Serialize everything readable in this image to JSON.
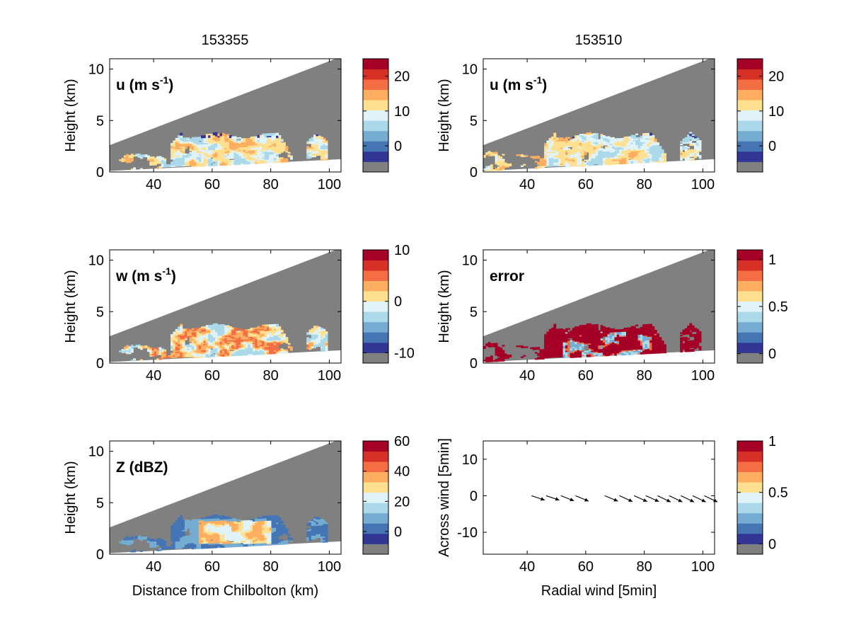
{
  "column_titles": [
    "153355",
    "153510"
  ],
  "colors": {
    "nodata": "#808080",
    "colormap": [
      "#313695",
      "#4575b4",
      "#74add1",
      "#abd9e9",
      "#e0f3f8",
      "#fee090",
      "#fdae61",
      "#f46d43",
      "#d73027",
      "#a50026"
    ]
  },
  "chart_data": [
    {
      "type": "heatmap",
      "id": "u-153355",
      "column": 0,
      "label": "u (m s",
      "label_sup": "-1",
      "label_end": ")",
      "xlabel": "",
      "ylabel": "Height (km)",
      "xlim": [
        25,
        104
      ],
      "ylim": [
        0,
        11
      ],
      "xticks": [
        40,
        60,
        80,
        100
      ],
      "yticks": [
        0,
        5,
        10
      ],
      "colorbar": {
        "ticks": [
          0,
          10,
          20
        ],
        "range": [
          -7.5,
          25
        ]
      },
      "field": "u",
      "echo_shape": "Cloud band between about 46 and 86 km at heights 0.5 to 3.8 km; cell near 95 km; scattered echoes 25 to 45 km below 2 km"
    },
    {
      "type": "heatmap",
      "id": "u-153510",
      "column": 1,
      "label": "u (m s",
      "label_sup": "-1",
      "label_end": ")",
      "xlabel": "",
      "ylabel": "Height (km)",
      "xlim": [
        25,
        104
      ],
      "ylim": [
        0,
        11
      ],
      "xticks": [
        40,
        60,
        80,
        100
      ],
      "yticks": [
        0,
        5,
        10
      ],
      "colorbar": {
        "ticks": [
          0,
          10,
          20
        ],
        "range": [
          -7.5,
          25
        ]
      },
      "field": "u"
    },
    {
      "type": "heatmap",
      "id": "w-153355",
      "column": 0,
      "label": "w (m s",
      "label_sup": "-1",
      "label_end": ")",
      "xlabel": "",
      "ylabel": "Height (km)",
      "xlim": [
        25,
        104
      ],
      "ylim": [
        0,
        11
      ],
      "xticks": [
        40,
        60,
        80,
        100
      ],
      "yticks": [
        0,
        5,
        10
      ],
      "colorbar": {
        "ticks": [
          -10,
          0,
          10
        ],
        "range": [
          -12,
          10
        ]
      },
      "field": "w"
    },
    {
      "type": "heatmap",
      "id": "error-153510",
      "column": 1,
      "label": "error",
      "label_sup": "",
      "label_end": "",
      "xlabel": "",
      "ylabel": "Height (km)",
      "xlim": [
        25,
        104
      ],
      "ylim": [
        0,
        11
      ],
      "xticks": [
        40,
        60,
        80,
        100
      ],
      "yticks": [
        0,
        5,
        10
      ],
      "colorbar": {
        "ticks": [
          0,
          0.5,
          1
        ],
        "range": [
          -0.1,
          1.1
        ]
      },
      "field": "error"
    },
    {
      "type": "heatmap",
      "id": "z-153355",
      "column": 0,
      "label": "Z (dBZ)",
      "label_sup": "",
      "label_end": "",
      "xlabel": "Distance from Chilbolton (km)",
      "ylabel": "Height (km)",
      "xlim": [
        25,
        104
      ],
      "ylim": [
        0,
        11
      ],
      "xticks": [
        40,
        60,
        80,
        100
      ],
      "yticks": [
        0,
        5,
        10
      ],
      "colorbar": {
        "ticks": [
          0,
          20,
          40,
          60
        ],
        "range": [
          -15,
          60
        ]
      },
      "field": "Z"
    },
    {
      "type": "scatter",
      "id": "wind-quiver",
      "column": 1,
      "label": "",
      "label_sup": "",
      "label_end": "",
      "xlabel": "Radial wind [5min]",
      "ylabel": "Across wind [5min]",
      "xlim": [
        25,
        104
      ],
      "ylim": [
        -16,
        15
      ],
      "xticks": [
        40,
        60,
        80,
        100
      ],
      "yticks": [
        -10,
        0,
        10
      ],
      "colorbar": {
        "ticks": [
          0,
          0.5,
          1
        ],
        "range": [
          -0.1,
          1
        ]
      },
      "arrows": [
        {
          "x": 41.5,
          "y": 0,
          "u": 4.5,
          "v": -1.2
        },
        {
          "x": 46.5,
          "y": 0,
          "u": 4.5,
          "v": -1.2
        },
        {
          "x": 51.5,
          "y": 0,
          "u": 4.5,
          "v": -1.4
        },
        {
          "x": 56.5,
          "y": 0,
          "u": 4.5,
          "v": -1.5
        },
        {
          "x": 66.5,
          "y": 0,
          "u": 4.5,
          "v": -1.5
        },
        {
          "x": 71.5,
          "y": 0,
          "u": 4.5,
          "v": -1.6
        },
        {
          "x": 76.5,
          "y": 0,
          "u": 4.5,
          "v": -1.6
        },
        {
          "x": 80.5,
          "y": 0,
          "u": 4.5,
          "v": -1.6
        },
        {
          "x": 84.5,
          "y": 0,
          "u": 4.5,
          "v": -1.7
        },
        {
          "x": 88.5,
          "y": 0,
          "u": 4.5,
          "v": -1.7
        },
        {
          "x": 92.5,
          "y": 0,
          "u": 4.5,
          "v": -1.7
        },
        {
          "x": 96.5,
          "y": 0,
          "u": 4.5,
          "v": -1.7
        },
        {
          "x": 100.5,
          "y": 0,
          "u": 4.5,
          "v": -1.7
        }
      ]
    }
  ]
}
